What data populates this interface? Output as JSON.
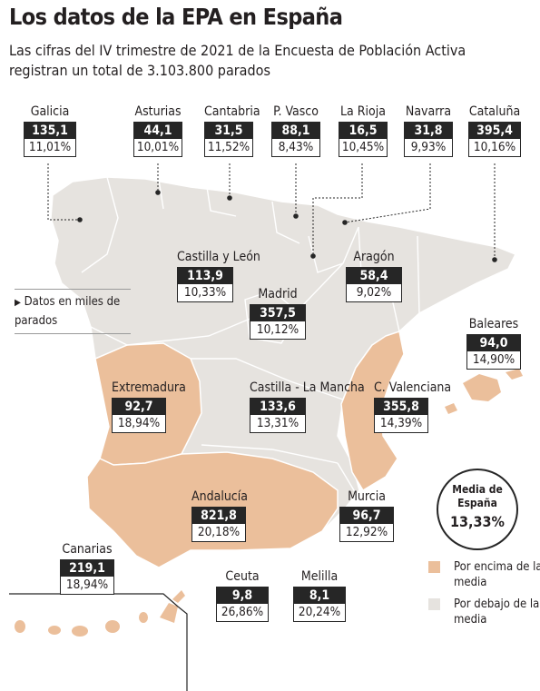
{
  "title": "Los datos de la EPA en España",
  "subtitle": "Las cifras del IV trimestre de 2021 de la Encuesta de Población Activa registran un total de 3.103.800 parados",
  "note": {
    "arrow": "▶",
    "text": "Datos en miles de parados"
  },
  "average": {
    "line1": "Media de España",
    "value": "13,33%"
  },
  "legend": {
    "above": {
      "label": "Por encima de la media",
      "color": "#ebbf9b"
    },
    "below": {
      "label": "Por debajo de la media",
      "color": "#e6e3df"
    }
  },
  "regions": [
    {
      "name": "Galicia",
      "value": "135,1",
      "pct": "11,01%"
    },
    {
      "name": "Asturias",
      "value": "44,1",
      "pct": "10,01%"
    },
    {
      "name": "Cantabria",
      "value": "31,5",
      "pct": "11,52%"
    },
    {
      "name": "P. Vasco",
      "value": "88,1",
      "pct": "8,43%"
    },
    {
      "name": "La Rioja",
      "value": "16,5",
      "pct": "10,45%"
    },
    {
      "name": "Navarra",
      "value": "31,8",
      "pct": "9,93%"
    },
    {
      "name": "Cataluña",
      "value": "395,4",
      "pct": "10,16%"
    },
    {
      "name": "Castilla y León",
      "value": "113,9",
      "pct": "10,33%"
    },
    {
      "name": "Aragón",
      "value": "58,4",
      "pct": "9,02%"
    },
    {
      "name": "Madrid",
      "value": "357,5",
      "pct": "10,12%"
    },
    {
      "name": "Baleares",
      "value": "94,0",
      "pct": "14,90%"
    },
    {
      "name": "Extremadura",
      "value": "92,7",
      "pct": "18,94%"
    },
    {
      "name": "Castilla - La Mancha",
      "value": "133,6",
      "pct": "13,31%"
    },
    {
      "name": "C. Valenciana",
      "value": "355,8",
      "pct": "14,39%"
    },
    {
      "name": "Andalucía",
      "value": "821,8",
      "pct": "20,18%"
    },
    {
      "name": "Murcia",
      "value": "96,7",
      "pct": "12,92%"
    },
    {
      "name": "Canarias",
      "value": "219,1",
      "pct": "18,94%"
    },
    {
      "name": "Ceuta",
      "value": "9,8",
      "pct": "26,86%"
    },
    {
      "name": "Melilla",
      "value": "8,1",
      "pct": "20,24%"
    }
  ]
}
